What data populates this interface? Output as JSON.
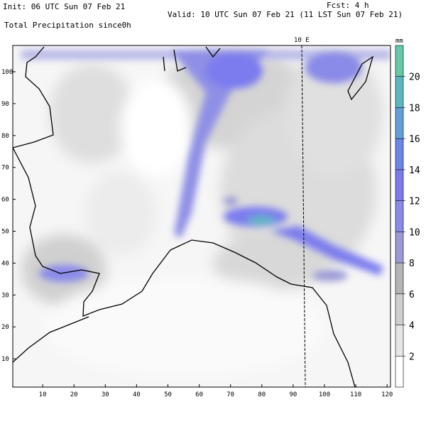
{
  "header": {
    "init": "Init: 06 UTC Sun 07 Feb 21",
    "fcst": "Fcst:    4 h",
    "valid": "Valid: 10 UTC Sun 07 Feb 21 (11 LST Sun 07 Feb 21)",
    "field": "Total Precipitation since0h"
  },
  "map": {
    "xticks": [
      10,
      20,
      30,
      40,
      50,
      60,
      70,
      80,
      90,
      100,
      110,
      120
    ],
    "yticks": [
      10,
      20,
      30,
      40,
      50,
      60,
      70,
      80,
      90,
      100
    ],
    "meridian_label": "10 E"
  },
  "colorbar": {
    "unit": "mm",
    "ticks": [
      2,
      4,
      6,
      8,
      10,
      12,
      14,
      16,
      18,
      20
    ],
    "colors": [
      "#ffffff",
      "#e6e6e6",
      "#cfcfcf",
      "#b5b5b5",
      "#9a9ad6",
      "#8a8ae8",
      "#7b7bef",
      "#6e86e8",
      "#62a0d8",
      "#5cb8c0",
      "#66c8a8"
    ]
  }
}
